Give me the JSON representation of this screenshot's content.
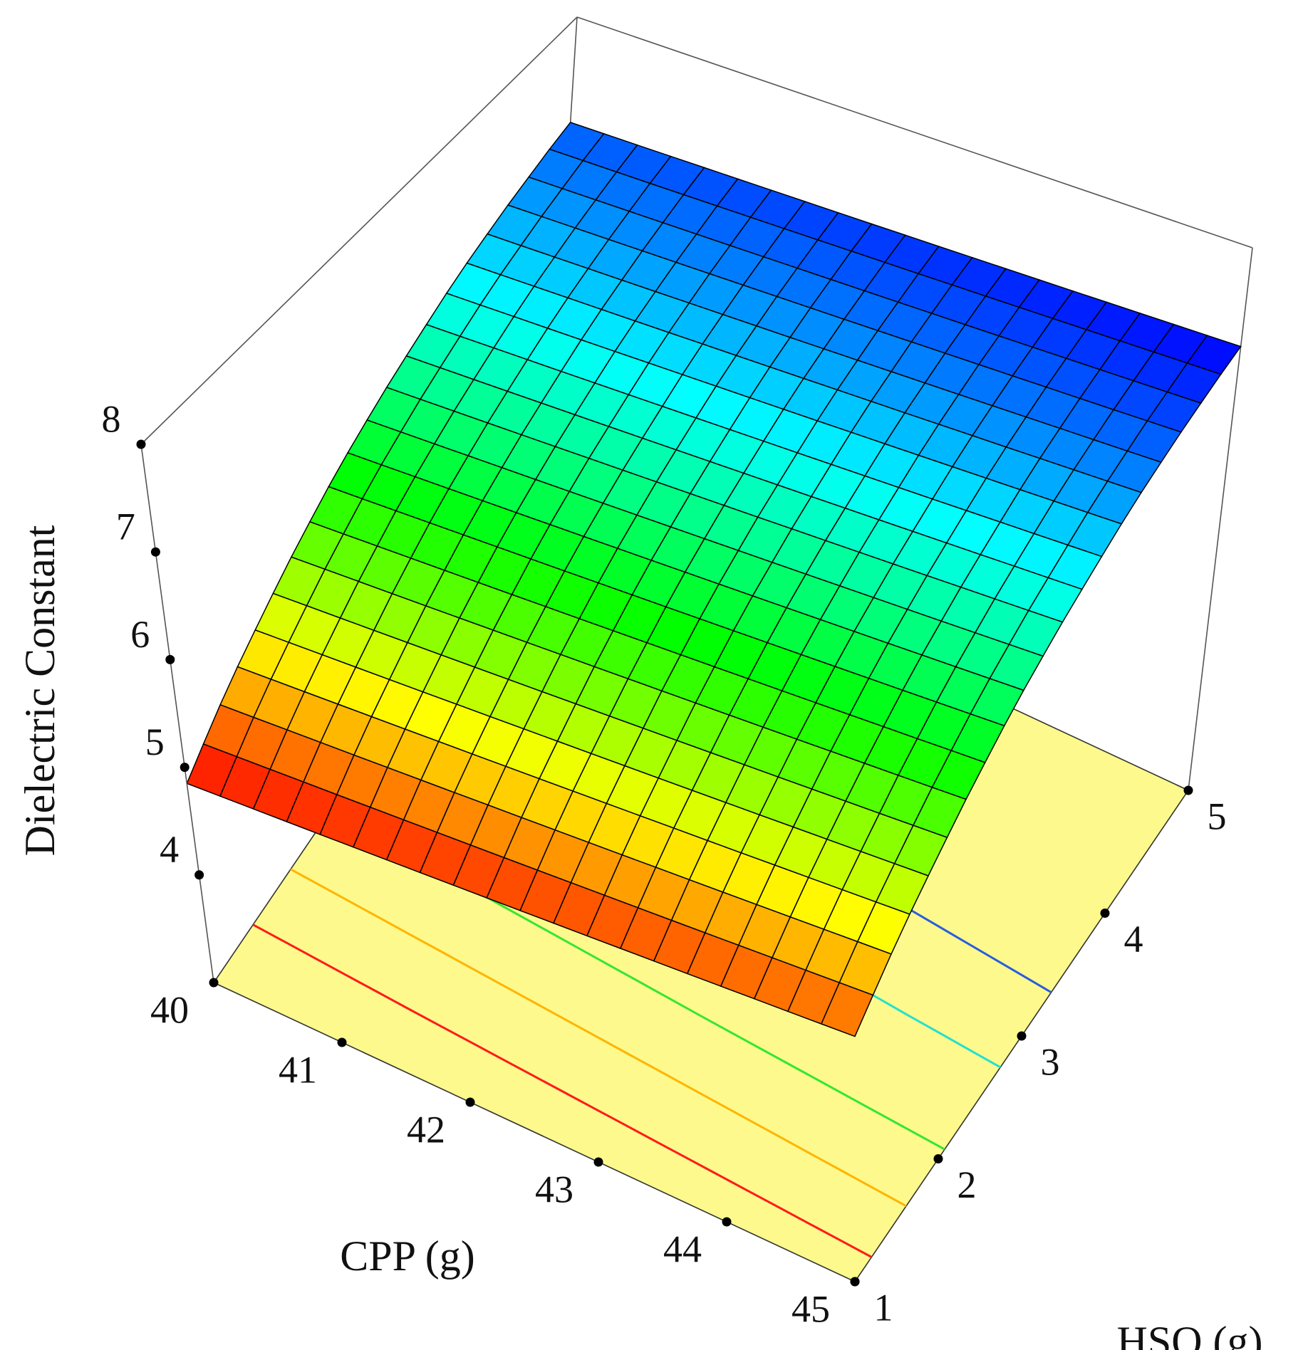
{
  "chart_data": {
    "type": "surface",
    "xlabel": "CPP (g)",
    "ylabel": "HSO (g)",
    "zlabel": "Dielectric Constant",
    "xlim": [
      40,
      45
    ],
    "xticks": [
      40,
      41,
      42,
      43,
      44,
      45
    ],
    "ylim": [
      1,
      5
    ],
    "yticks": [
      1,
      2,
      3,
      4,
      5
    ],
    "zlim": [
      3,
      8
    ],
    "zticks": [
      4,
      5,
      6,
      7,
      8
    ],
    "x": [
      40,
      40.25,
      40.5,
      40.75,
      41,
      41.25,
      41.5,
      41.75,
      42,
      42.25,
      42.5,
      42.75,
      43,
      43.25,
      43.5,
      43.75,
      44,
      44.25,
      44.5,
      44.75,
      45
    ],
    "y": [
      1,
      1.2,
      1.4,
      1.6,
      1.8,
      2,
      2.2,
      2.4,
      2.6,
      2.8,
      3,
      3.2,
      3.4,
      3.6,
      3.8,
      4,
      4.2,
      4.4,
      4.6,
      4.8,
      5
    ],
    "z": [
      [
        4.85,
        4.86,
        4.87,
        4.88,
        4.89,
        4.9,
        4.91,
        4.92,
        4.93,
        4.94,
        4.95,
        4.96,
        4.97,
        4.98,
        4.99,
        5.0,
        5.01,
        5.02,
        5.03,
        5.04,
        5.05
      ],
      [
        5.0,
        5.01,
        5.02,
        5.03,
        5.04,
        5.05,
        5.06,
        5.07,
        5.08,
        5.09,
        5.1,
        5.11,
        5.12,
        5.13,
        5.14,
        5.15,
        5.16,
        5.17,
        5.18,
        5.19,
        5.2
      ],
      [
        5.15,
        5.16,
        5.17,
        5.18,
        5.19,
        5.2,
        5.21,
        5.22,
        5.23,
        5.24,
        5.25,
        5.26,
        5.27,
        5.28,
        5.29,
        5.3,
        5.31,
        5.32,
        5.33,
        5.34,
        5.35
      ],
      [
        5.29,
        5.3,
        5.31,
        5.32,
        5.33,
        5.34,
        5.35,
        5.36,
        5.37,
        5.38,
        5.39,
        5.4,
        5.41,
        5.42,
        5.43,
        5.44,
        5.45,
        5.46,
        5.47,
        5.48,
        5.49
      ],
      [
        5.42,
        5.43,
        5.44,
        5.45,
        5.46,
        5.47,
        5.48,
        5.49,
        5.5,
        5.51,
        5.52,
        5.53,
        5.54,
        5.55,
        5.56,
        5.57,
        5.58,
        5.59,
        5.6,
        5.61,
        5.62
      ],
      [
        5.55,
        5.56,
        5.57,
        5.58,
        5.59,
        5.6,
        5.61,
        5.62,
        5.63,
        5.64,
        5.65,
        5.66,
        5.67,
        5.68,
        5.69,
        5.7,
        5.71,
        5.72,
        5.73,
        5.74,
        5.75
      ],
      [
        5.68,
        5.69,
        5.7,
        5.71,
        5.72,
        5.73,
        5.74,
        5.75,
        5.76,
        5.77,
        5.78,
        5.79,
        5.8,
        5.81,
        5.82,
        5.83,
        5.84,
        5.85,
        5.86,
        5.87,
        5.88
      ],
      [
        5.8,
        5.81,
        5.82,
        5.83,
        5.84,
        5.85,
        5.86,
        5.87,
        5.88,
        5.89,
        5.9,
        5.91,
        5.92,
        5.93,
        5.94,
        5.95,
        5.96,
        5.97,
        5.98,
        5.99,
        6.0
      ],
      [
        5.92,
        5.93,
        5.94,
        5.95,
        5.96,
        5.97,
        5.98,
        5.99,
        6.0,
        6.01,
        6.02,
        6.03,
        6.04,
        6.05,
        6.06,
        6.07,
        6.08,
        6.09,
        6.1,
        6.11,
        6.12
      ],
      [
        6.03,
        6.04,
        6.05,
        6.06,
        6.07,
        6.08,
        6.09,
        6.1,
        6.11,
        6.12,
        6.13,
        6.14,
        6.15,
        6.16,
        6.17,
        6.18,
        6.19,
        6.2,
        6.21,
        6.22,
        6.23
      ],
      [
        6.13,
        6.14,
        6.15,
        6.16,
        6.17,
        6.18,
        6.19,
        6.2,
        6.21,
        6.22,
        6.23,
        6.24,
        6.25,
        6.26,
        6.27,
        6.28,
        6.29,
        6.3,
        6.31,
        6.32,
        6.33
      ],
      [
        6.23,
        6.24,
        6.25,
        6.26,
        6.27,
        6.28,
        6.29,
        6.3,
        6.31,
        6.32,
        6.33,
        6.34,
        6.35,
        6.36,
        6.37,
        6.38,
        6.39,
        6.4,
        6.41,
        6.42,
        6.43
      ],
      [
        6.32,
        6.33,
        6.34,
        6.35,
        6.36,
        6.37,
        6.38,
        6.39,
        6.4,
        6.41,
        6.42,
        6.43,
        6.44,
        6.45,
        6.46,
        6.47,
        6.48,
        6.49,
        6.5,
        6.51,
        6.52
      ],
      [
        6.41,
        6.42,
        6.43,
        6.44,
        6.45,
        6.46,
        6.47,
        6.48,
        6.49,
        6.5,
        6.51,
        6.52,
        6.53,
        6.54,
        6.55,
        6.56,
        6.57,
        6.58,
        6.59,
        6.6,
        6.61
      ],
      [
        6.5,
        6.51,
        6.52,
        6.53,
        6.54,
        6.55,
        6.56,
        6.57,
        6.58,
        6.59,
        6.6,
        6.61,
        6.62,
        6.63,
        6.64,
        6.65,
        6.66,
        6.67,
        6.68,
        6.69,
        6.7
      ],
      [
        6.58,
        6.59,
        6.6,
        6.61,
        6.62,
        6.63,
        6.64,
        6.65,
        6.66,
        6.67,
        6.68,
        6.69,
        6.7,
        6.71,
        6.72,
        6.73,
        6.74,
        6.75,
        6.76,
        6.77,
        6.78
      ],
      [
        6.65,
        6.66,
        6.67,
        6.68,
        6.69,
        6.7,
        6.71,
        6.72,
        6.73,
        6.74,
        6.75,
        6.76,
        6.77,
        6.78,
        6.79,
        6.8,
        6.81,
        6.82,
        6.83,
        6.84,
        6.85
      ],
      [
        6.72,
        6.73,
        6.74,
        6.75,
        6.76,
        6.77,
        6.78,
        6.79,
        6.8,
        6.81,
        6.82,
        6.83,
        6.84,
        6.85,
        6.86,
        6.87,
        6.88,
        6.89,
        6.9,
        6.91,
        6.92
      ],
      [
        6.78,
        6.79,
        6.8,
        6.81,
        6.82,
        6.83,
        6.84,
        6.85,
        6.86,
        6.87,
        6.88,
        6.89,
        6.9,
        6.91,
        6.92,
        6.93,
        6.94,
        6.95,
        6.96,
        6.97,
        6.98
      ],
      [
        6.84,
        6.85,
        6.86,
        6.87,
        6.88,
        6.89,
        6.9,
        6.91,
        6.92,
        6.93,
        6.94,
        6.95,
        6.96,
        6.97,
        6.98,
        6.99,
        7.0,
        7.01,
        7.02,
        7.03,
        7.04
      ],
      [
        6.89,
        6.9,
        6.91,
        6.92,
        6.93,
        6.94,
        6.95,
        6.96,
        6.97,
        6.98,
        6.99,
        7.0,
        7.01,
        7.02,
        7.03,
        7.04,
        7.05,
        7.06,
        7.07,
        7.08,
        7.09
      ]
    ],
    "colormap": [
      "#ff0000",
      "#ffff00",
      "#00ff00",
      "#00ffff",
      "#0000ff"
    ],
    "floor_color": "#fdf98c",
    "contour_levels": [
      5.2,
      5.5,
      5.8,
      6.2,
      6.5
    ],
    "contour_colors": [
      "#ff1a1a",
      "#ffb400",
      "#33e633",
      "#22e0d0",
      "#2a5de0"
    ]
  }
}
